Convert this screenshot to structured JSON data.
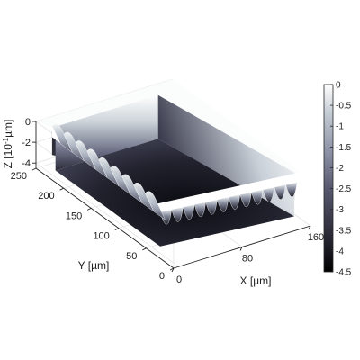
{
  "chart_data": {
    "type": "surface3d",
    "x_label": "X [µm]",
    "y_label": "Y [µm]",
    "z_label_main": "Z [10",
    "z_label_exp": "-1",
    "z_label_unit": "µm]",
    "x_ticks": [
      {
        "value": 0,
        "label": "0"
      },
      {
        "value": 80,
        "label": "80"
      },
      {
        "value": 160,
        "label": "160"
      }
    ],
    "y_ticks": [
      {
        "value": 0,
        "label": "0"
      },
      {
        "value": 50,
        "label": "50"
      },
      {
        "value": 100,
        "label": "100"
      },
      {
        "value": 150,
        "label": "150"
      },
      {
        "value": 200,
        "label": "200"
      },
      {
        "value": 250,
        "label": "250"
      }
    ],
    "z_ticks": [
      {
        "value": 0,
        "label": "0"
      },
      {
        "value": -2,
        "label": "-2"
      },
      {
        "value": -4,
        "label": "-4"
      }
    ],
    "x_range": [
      0,
      160
    ],
    "y_range": [
      0,
      250
    ],
    "z_range": [
      -4.5,
      0
    ],
    "grid": true,
    "colorbar": {
      "min": -4.5,
      "max": 0,
      "ticks": [
        {
          "value": 0,
          "label": "0"
        },
        {
          "value": -0.5,
          "label": "-0.5"
        },
        {
          "value": -1,
          "label": "-1"
        },
        {
          "value": -1.5,
          "label": "-1.5"
        },
        {
          "value": -2,
          "label": "-2"
        },
        {
          "value": -2.5,
          "label": "-2.5"
        },
        {
          "value": -3,
          "label": "-3"
        },
        {
          "value": -3.5,
          "label": "-3.5"
        },
        {
          "value": -4,
          "label": "-4"
        },
        {
          "value": -4.5,
          "label": "-4.5"
        }
      ],
      "colors": [
        "#000000",
        "#2a2a38",
        "#595a70",
        "#8f95a8",
        "#c4ccd4",
        "#ffffff"
      ]
    },
    "surface": {
      "description_values": {
        "rim_height": 0,
        "floor_depth": -4.2,
        "cavity_x_extent": [
          10,
          130
        ],
        "cavity_y_extent": [
          40,
          230
        ],
        "ripple_count_front": 12,
        "ripple_count_left": 9
      }
    }
  }
}
